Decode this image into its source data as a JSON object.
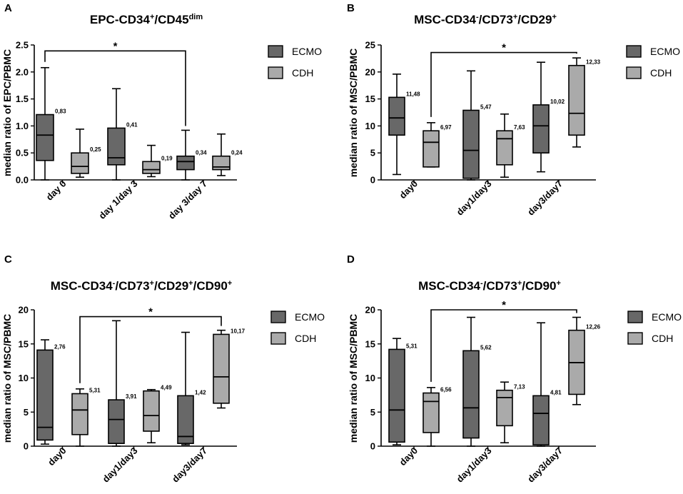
{
  "chart_data": [
    {
      "type": "box",
      "panel": "A",
      "title": "EPC-CD34+/CD45dim",
      "title_parts": [
        {
          "t": "EPC-CD34",
          "s": ""
        },
        {
          "t": "+",
          "s": "sup"
        },
        {
          "t": "/CD45",
          "s": ""
        },
        {
          "t": "dim",
          "s": "sup"
        }
      ],
      "ylabel": "median ratio of EPC/PBMC",
      "ylim": [
        0,
        2.5
      ],
      "yticks": [
        "0.0",
        "0.5",
        "1.0",
        "1.5",
        "2.0",
        "2.5"
      ],
      "categories": [
        "day 0",
        "day 1/day 3",
        "day 3/day 7"
      ],
      "legend": [
        "ECMO",
        "CDH"
      ],
      "colors": {
        "ECMO": "#686868",
        "CDH": "#aaaaaa"
      },
      "significance": {
        "from_category": 0,
        "from_series": "ECMO",
        "to_category": 2,
        "to_series": "ECMO",
        "label": "*",
        "level": 2.39
      },
      "series": [
        {
          "name": "ECMO",
          "boxes": [
            {
              "min": 0.0,
              "q1": 0.36,
              "median": 0.83,
              "q3": 1.21,
              "max": 2.08,
              "label": "0,83"
            },
            {
              "min": 0.0,
              "q1": 0.28,
              "median": 0.41,
              "q3": 0.96,
              "max": 1.69,
              "label": "0,41"
            },
            {
              "min": 0.0,
              "q1": 0.19,
              "median": 0.34,
              "q3": 0.44,
              "max": 0.92,
              "label": "0,34"
            }
          ]
        },
        {
          "name": "CDH",
          "boxes": [
            {
              "min": 0.05,
              "q1": 0.12,
              "median": 0.25,
              "q3": 0.5,
              "max": 0.94,
              "label": "0,25"
            },
            {
              "min": 0.06,
              "q1": 0.12,
              "median": 0.19,
              "q3": 0.34,
              "max": 0.64,
              "label": "0,19"
            },
            {
              "min": 0.08,
              "q1": 0.19,
              "median": 0.24,
              "q3": 0.44,
              "max": 0.85,
              "label": "0,24"
            }
          ]
        }
      ]
    },
    {
      "type": "box",
      "panel": "B",
      "title": "MSC-CD34-/CD73+/CD29+",
      "title_parts": [
        {
          "t": "MSC-CD34",
          "s": ""
        },
        {
          "t": "-",
          "s": "sup"
        },
        {
          "t": "/CD73",
          "s": ""
        },
        {
          "t": "+",
          "s": "sup"
        },
        {
          "t": "/CD29",
          "s": ""
        },
        {
          "t": "+",
          "s": "sup"
        }
      ],
      "ylabel": "median ratio of MSC/PBMC",
      "ylim": [
        0,
        25
      ],
      "yticks": [
        "0",
        "5",
        "10",
        "15",
        "20",
        "25"
      ],
      "categories": [
        "day0",
        "day1/day3",
        "day3/day7"
      ],
      "legend": [
        "ECMO",
        "CDH"
      ],
      "colors": {
        "ECMO": "#686868",
        "CDH": "#aaaaaa"
      },
      "significance": {
        "from_category": 0,
        "from_series": "CDH",
        "to_category": 2,
        "to_series": "CDH",
        "label": "*",
        "level": 23.6
      },
      "series": [
        {
          "name": "ECMO",
          "boxes": [
            {
              "min": 1.0,
              "q1": 8.3,
              "median": 11.48,
              "q3": 15.3,
              "max": 19.6,
              "label": "11,48"
            },
            {
              "min": 0.0,
              "q1": 0.3,
              "median": 5.47,
              "q3": 12.9,
              "max": 20.2,
              "label": "5,47"
            },
            {
              "min": 1.5,
              "q1": 5.0,
              "median": 10.02,
              "q3": 13.9,
              "max": 21.8,
              "label": "10,02"
            }
          ]
        },
        {
          "name": "CDH",
          "boxes": [
            {
              "min": 2.4,
              "q1": 2.4,
              "median": 6.97,
              "q3": 9.1,
              "max": 10.6,
              "label": "6,97"
            },
            {
              "min": 0.5,
              "q1": 2.8,
              "median": 7.63,
              "q3": 9.1,
              "max": 12.2,
              "label": "7,63"
            },
            {
              "min": 6.1,
              "q1": 8.3,
              "median": 12.33,
              "q3": 21.2,
              "max": 22.6,
              "label": "12,33"
            }
          ]
        }
      ]
    },
    {
      "type": "box",
      "panel": "C",
      "title": "MSC-CD34-/CD73+/CD29+/CD90+",
      "title_parts": [
        {
          "t": "MSC-CD34",
          "s": ""
        },
        {
          "t": "-",
          "s": "sup"
        },
        {
          "t": "/CD73",
          "s": ""
        },
        {
          "t": "+",
          "s": "sup"
        },
        {
          "t": "/CD29",
          "s": ""
        },
        {
          "t": "+",
          "s": "sup"
        },
        {
          "t": "/CD90",
          "s": ""
        },
        {
          "t": "+",
          "s": "sup"
        }
      ],
      "ylabel": "median ratio of MSC/PBMC",
      "ylim": [
        0,
        20
      ],
      "yticks": [
        "0",
        "5",
        "10",
        "15",
        "20"
      ],
      "categories": [
        "day0",
        "day1/day3",
        "day3/day7"
      ],
      "legend": [
        "ECMO",
        "CDH"
      ],
      "colors": {
        "ECMO": "#686868",
        "CDH": "#aaaaaa"
      },
      "significance": {
        "from_category": 0,
        "from_series": "CDH",
        "to_category": 2,
        "to_series": "CDH",
        "label": "*",
        "level": 19.0
      },
      "series": [
        {
          "name": "ECMO",
          "boxes": [
            {
              "min": 0.3,
              "q1": 0.9,
              "median": 2.76,
              "q3": 14.1,
              "max": 15.6,
              "label": "2,76"
            },
            {
              "min": 0.0,
              "q1": 0.4,
              "median": 3.91,
              "q3": 6.8,
              "max": 18.4,
              "label": "3,91"
            },
            {
              "min": 0.2,
              "q1": 0.4,
              "median": 1.42,
              "q3": 7.4,
              "max": 16.7,
              "label": "1,42"
            }
          ]
        },
        {
          "name": "CDH",
          "boxes": [
            {
              "min": 0.0,
              "q1": 1.7,
              "median": 5.31,
              "q3": 7.7,
              "max": 8.4,
              "label": "5,31"
            },
            {
              "min": 0.5,
              "q1": 2.2,
              "median": 4.49,
              "q3": 8.1,
              "max": 8.3,
              "label": "4,49"
            },
            {
              "min": 5.6,
              "q1": 6.3,
              "median": 10.17,
              "q3": 16.4,
              "max": 17.0,
              "label": "10,17"
            }
          ]
        }
      ]
    },
    {
      "type": "box",
      "panel": "D",
      "title": "MSC-CD34-/CD73+/CD90+",
      "title_parts": [
        {
          "t": "MSC-CD34",
          "s": ""
        },
        {
          "t": "-",
          "s": "sup"
        },
        {
          "t": "/CD73",
          "s": ""
        },
        {
          "t": "+",
          "s": "sup"
        },
        {
          "t": "/CD90",
          "s": ""
        },
        {
          "t": "+",
          "s": "sup"
        }
      ],
      "ylabel": "median ratio of MSC/PBMC",
      "ylim": [
        0,
        20
      ],
      "yticks": [
        "0",
        "5",
        "10",
        "15",
        "20"
      ],
      "categories": [
        "day0",
        "day1/day3",
        "day3/day7"
      ],
      "legend": [
        "ECMO",
        "CDH"
      ],
      "colors": {
        "ECMO": "#686868",
        "CDH": "#aaaaaa"
      },
      "significance": {
        "from_category": 0,
        "from_series": "CDH",
        "to_category": 2,
        "to_series": "CDH",
        "label": "*",
        "level": 20.0
      },
      "series": [
        {
          "name": "ECMO",
          "boxes": [
            {
              "min": 0.2,
              "q1": 0.6,
              "median": 5.31,
              "q3": 14.2,
              "max": 15.8,
              "label": "5,31"
            },
            {
              "min": 0.0,
              "q1": 1.2,
              "median": 5.62,
              "q3": 14.0,
              "max": 18.9,
              "label": "5,62"
            },
            {
              "min": 0.0,
              "q1": 0.2,
              "median": 4.81,
              "q3": 7.4,
              "max": 18.1,
              "label": "4,81"
            }
          ]
        },
        {
          "name": "CDH",
          "boxes": [
            {
              "min": 0.0,
              "q1": 2.0,
              "median": 6.56,
              "q3": 7.8,
              "max": 8.6,
              "label": "6,56"
            },
            {
              "min": 0.5,
              "q1": 3.0,
              "median": 7.13,
              "q3": 8.2,
              "max": 9.4,
              "label": "7,13"
            },
            {
              "min": 6.1,
              "q1": 7.6,
              "median": 12.26,
              "q3": 17.0,
              "max": 18.9,
              "label": "12,26"
            }
          ]
        }
      ]
    }
  ]
}
